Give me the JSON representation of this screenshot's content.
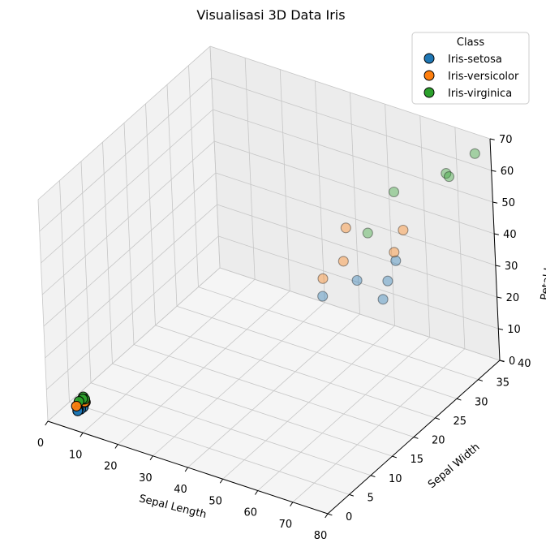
{
  "chart_data": {
    "type": "scatter3d",
    "title": "Visualisasi 3D Data Iris",
    "xlabel": "Sepal Length",
    "ylabel": "Sepal Width",
    "zlabel": "Petal Length",
    "xlim": [
      0,
      80
    ],
    "ylim": [
      0,
      40
    ],
    "zlim": [
      0,
      70
    ],
    "x_ticks": [
      "0",
      "10",
      "20",
      "30",
      "40",
      "50",
      "60",
      "70",
      "80"
    ],
    "y_ticks": [
      "0",
      "5",
      "10",
      "15",
      "20",
      "25",
      "30",
      "35",
      "40"
    ],
    "z_ticks": [
      "0",
      "10",
      "20",
      "30",
      "40",
      "50",
      "60",
      "70"
    ],
    "grid": true,
    "legend": {
      "title": "Class",
      "position": "top-right"
    },
    "series": [
      {
        "name": "Iris-setosa",
        "color": "#1f77b4",
        "points": [
          {
            "x": 5.1,
            "y": 3.5,
            "z": 1.4
          },
          {
            "x": 4.9,
            "y": 3.0,
            "z": 1.4
          },
          {
            "x": 4.7,
            "y": 3.2,
            "z": 1.3
          },
          {
            "x": 5.0,
            "y": 3.6,
            "z": 1.4
          },
          {
            "x": 5.4,
            "y": 3.9,
            "z": 1.7
          },
          {
            "x": 4.6,
            "y": 3.4,
            "z": 1.4
          },
          {
            "x": 45,
            "y": 28,
            "z": 22
          },
          {
            "x": 50,
            "y": 32,
            "z": 24
          },
          {
            "x": 55,
            "y": 37,
            "z": 26
          },
          {
            "x": 55,
            "y": 35,
            "z": 22
          },
          {
            "x": 56,
            "y": 33,
            "z": 19
          }
        ]
      },
      {
        "name": "Iris-versicolor",
        "color": "#ff7f0e",
        "points": [
          {
            "x": 7.0,
            "y": 3.2,
            "z": 4.7
          },
          {
            "x": 6.4,
            "y": 3.2,
            "z": 4.5
          },
          {
            "x": 6.9,
            "y": 3.1,
            "z": 4.9
          },
          {
            "x": 5.5,
            "y": 2.3,
            "z": 4.0
          },
          {
            "x": 44,
            "y": 29,
            "z": 26
          },
          {
            "x": 45,
            "y": 33,
            "z": 27
          },
          {
            "x": 50,
            "y": 30,
            "z": 43
          },
          {
            "x": 64,
            "y": 32,
            "z": 45
          },
          {
            "x": 65,
            "y": 29,
            "z": 42
          }
        ]
      },
      {
        "name": "Iris-virginica",
        "color": "#2ca02c",
        "points": [
          {
            "x": 6.3,
            "y": 3.3,
            "z": 6.0
          },
          {
            "x": 5.8,
            "y": 2.7,
            "z": 5.1
          },
          {
            "x": 7.1,
            "y": 3.0,
            "z": 5.9
          },
          {
            "x": 6.5,
            "y": 3.0,
            "z": 5.8
          },
          {
            "x": 55,
            "y": 31,
            "z": 42
          },
          {
            "x": 67,
            "y": 28,
            "z": 63
          },
          {
            "x": 72,
            "y": 36,
            "z": 61
          },
          {
            "x": 78,
            "y": 38,
            "z": 67
          },
          {
            "x": 78,
            "y": 32,
            "z": 67
          }
        ]
      }
    ]
  }
}
